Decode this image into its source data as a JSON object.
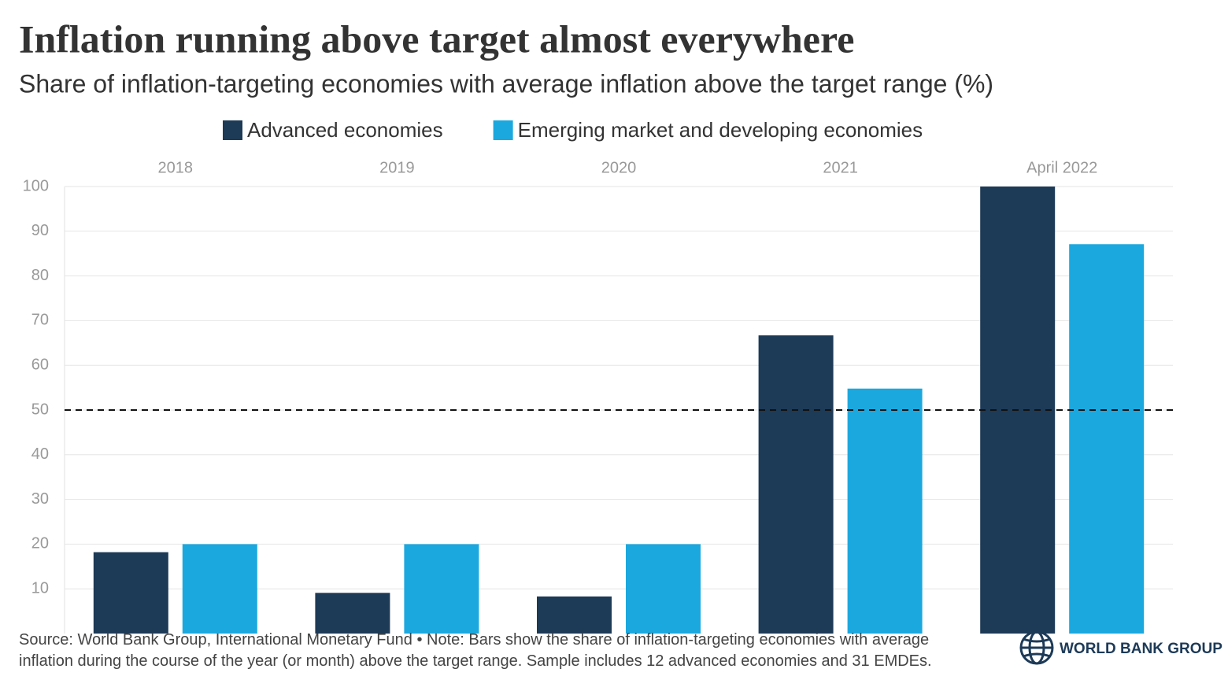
{
  "chart_data": {
    "type": "bar",
    "title": "Inflation running above target almost everywhere",
    "subtitle": "Share of inflation-targeting economies with average inflation above the target range (%)",
    "categories": [
      "2018",
      "2019",
      "2020",
      "2021",
      "April 2022"
    ],
    "series": [
      {
        "name": "Advanced economies",
        "color": "#1d3a57",
        "values": [
          18.2,
          9.1,
          8.3,
          66.7,
          100
        ]
      },
      {
        "name": "Emerging market and developing economies",
        "color": "#1ba8de",
        "values": [
          20,
          20,
          20,
          54.8,
          87.1
        ]
      }
    ],
    "ylim": [
      0,
      100
    ],
    "yticks": [
      10,
      20,
      30,
      40,
      50,
      60,
      70,
      80,
      90,
      100
    ],
    "grid": true,
    "reference_line": 50,
    "source": "Source: World Bank Group, International Monetary Fund • Note: Bars show the share of inflation-targeting economies with average inflation during the course of the year (or month) above the target range. Sample includes 12 advanced economies and 31 EMDEs.",
    "logo": "WORLD BANK GROUP"
  }
}
